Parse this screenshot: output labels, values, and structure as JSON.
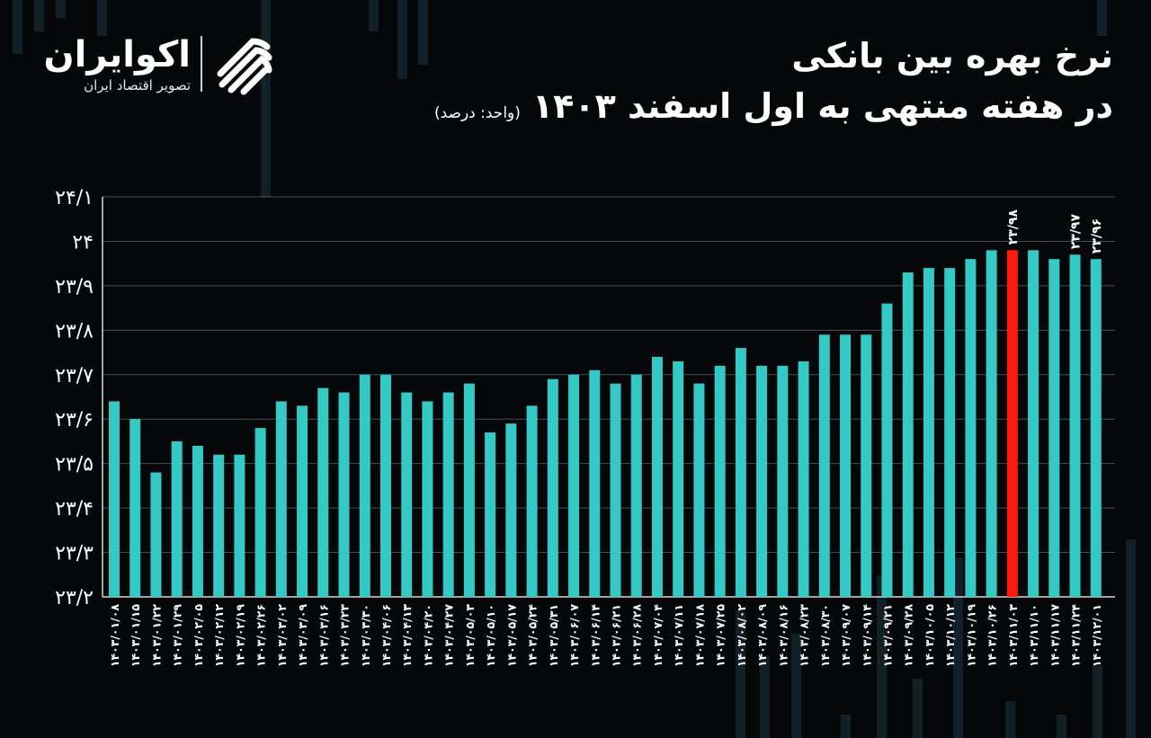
{
  "brand": {
    "name": "اکوایران",
    "tagline": "تصویر اقتصاد ایران"
  },
  "title": {
    "line1": "نرخ بهره بین بانکی",
    "line2": "در هفته منتهی به اول اسفند ۱۴۰۳",
    "unit": "(واحد: درصد)"
  },
  "colors": {
    "bar": "#35C9C6",
    "highlight": "#FF1A10",
    "grid": "#4a4d52",
    "text": "#FFFFFF",
    "background": "#060708"
  },
  "chart_data": {
    "type": "bar",
    "title": "نرخ بهره بین بانکی",
    "xlabel": "",
    "ylabel": "درصد",
    "ylim": [
      23.2,
      24.1
    ],
    "yticks": [
      "۲۳/۲",
      "۲۳/۳",
      "۲۳/۴",
      "۲۳/۵",
      "۲۳/۶",
      "۲۳/۷",
      "۲۳/۸",
      "۲۳/۹",
      "۲۴",
      "۲۴/۱"
    ],
    "ytick_values": [
      23.2,
      23.3,
      23.4,
      23.5,
      23.6,
      23.7,
      23.8,
      23.9,
      24.0,
      24.1
    ],
    "grid": true,
    "highlight_index": 43,
    "categories": [
      "۱۴۰۳/۰۱/۰۸",
      "۱۴۰۳/۰۱/۱۵",
      "۱۴۰۳/۰۱/۲۲",
      "۱۴۰۳/۰۱/۲۹",
      "۱۴۰۳/۰۲/۰۵",
      "۱۴۰۳/۰۲/۱۲",
      "۱۴۰۳/۰۲/۱۹",
      "۱۴۰۳/۰۲/۲۶",
      "۱۴۰۳/۰۳/۰۲",
      "۱۴۰۳/۰۳/۰۹",
      "۱۴۰۳/۰۳/۱۶",
      "۱۴۰۳/۰۳/۲۳",
      "۱۴۰۳/۰۳/۳۰",
      "۱۴۰۳/۰۴/۰۶",
      "۱۴۰۳/۰۴/۱۳",
      "۱۴۰۳/۰۴/۲۰",
      "۱۴۰۳/۰۴/۲۷",
      "۱۴۰۳/۰۵/۰۳",
      "۱۴۰۳/۰۵/۱۰",
      "۱۴۰۳/۰۵/۱۷",
      "۱۴۰۳/۰۵/۲۴",
      "۱۴۰۳/۰۵/۳۱",
      "۱۴۰۳/۰۶/۰۷",
      "۱۴۰۳/۰۶/۱۴",
      "۱۴۰۳/۰۶/۲۱",
      "۱۴۰۳/۰۶/۲۸",
      "۱۴۰۳/۰۷/۰۴",
      "۱۴۰۳/۰۷/۱۱",
      "۱۴۰۳/۰۷/۱۸",
      "۱۴۰۳/۰۷/۲۵",
      "۱۴۰۳/۰۸/۰۲",
      "۱۴۰۳/۰۸/۰۹",
      "۱۴۰۳/۰۸/۱۶",
      "۱۴۰۳/۰۸/۲۳",
      "۱۴۰۳/۰۸/۳۰",
      "۱۴۰۳/۰۹/۰۷",
      "۱۴۰۳/۰۹/۱۴",
      "۱۴۰۳/۰۹/۲۱",
      "۱۴۰۳/۰۹/۲۸",
      "۱۴۰۳/۱۰/۰۵",
      "۱۴۰۳/۱۰/۱۲",
      "۱۴۰۳/۱۰/۱۹",
      "۱۴۰۳/۱۰/۲۶",
      "۱۴۰۳/۱۱/۰۳",
      "۱۴۰۳/۱۱/۱۰",
      "۱۴۰۳/۱۱/۱۷",
      "۱۴۰۳/۱۱/۲۴",
      "۱۴۰۳/۱۲/۰۱"
    ],
    "values": [
      23.64,
      23.6,
      23.48,
      23.55,
      23.54,
      23.52,
      23.52,
      23.58,
      23.64,
      23.63,
      23.67,
      23.66,
      23.7,
      23.7,
      23.66,
      23.64,
      23.66,
      23.68,
      23.57,
      23.59,
      23.63,
      23.69,
      23.7,
      23.71,
      23.68,
      23.7,
      23.74,
      23.73,
      23.68,
      23.72,
      23.76,
      23.72,
      23.72,
      23.73,
      23.79,
      23.79,
      23.79,
      23.86,
      23.93,
      23.94,
      23.94,
      23.96,
      23.98,
      23.98,
      23.98,
      23.96,
      23.97,
      23.96
    ],
    "data_labels": [
      {
        "index": 43,
        "text": "۲۳/۹۸"
      },
      {
        "index": 46,
        "text": "۲۳/۹۷"
      },
      {
        "index": 47,
        "text": "۲۳/۹۶"
      }
    ]
  }
}
